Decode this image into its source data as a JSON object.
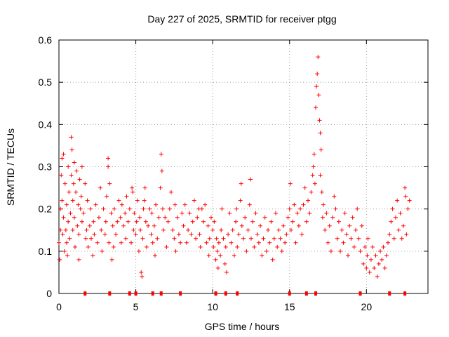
{
  "chart_data": {
    "type": "scatter",
    "title": "Day 227 of 2025, SRMTID for receiver ptgg",
    "xlabel": "GPS time / hours",
    "ylabel": "SRMTID / TECUs",
    "xlim": [
      0,
      24
    ],
    "ylim": [
      0,
      0.6
    ],
    "x_ticks": [
      0,
      5,
      10,
      15,
      20
    ],
    "x_tick_labels": [
      "0",
      "5",
      "10",
      "15",
      "20"
    ],
    "y_ticks": [
      0,
      0.1,
      0.2,
      0.3,
      0.4,
      0.5,
      0.6
    ],
    "y_tick_labels": [
      "0",
      "0.1",
      "0.2",
      "0.3",
      "0.4",
      "0.5",
      "0.6"
    ],
    "grid": true,
    "marker": "+",
    "color": "#ff0000",
    "series": [
      {
        "name": "SRMTID",
        "points": [
          [
            0.0,
            0.12
          ],
          [
            0.05,
            0.08
          ],
          [
            0.1,
            0.15
          ],
          [
            0.1,
            0.2
          ],
          [
            0.15,
            0.28
          ],
          [
            0.2,
            0.32
          ],
          [
            0.2,
            0.22
          ],
          [
            0.25,
            0.14
          ],
          [
            0.3,
            0.33
          ],
          [
            0.3,
            0.18
          ],
          [
            0.35,
            0.1
          ],
          [
            0.4,
            0.26
          ],
          [
            0.45,
            0.15
          ],
          [
            0.5,
            0.21
          ],
          [
            0.5,
            0.12
          ],
          [
            0.55,
            0.09
          ],
          [
            0.6,
            0.3
          ],
          [
            0.6,
            0.17
          ],
          [
            0.65,
            0.24
          ],
          [
            0.7,
            0.13
          ],
          [
            0.75,
            0.19
          ],
          [
            0.8,
            0.37
          ],
          [
            0.8,
            0.28
          ],
          [
            0.85,
            0.34
          ],
          [
            0.9,
            0.22
          ],
          [
            0.9,
            0.15
          ],
          [
            0.95,
            0.26
          ],
          [
            1.0,
            0.31
          ],
          [
            1.0,
            0.18
          ],
          [
            1.05,
            0.11
          ],
          [
            1.1,
            0.24
          ],
          [
            1.15,
            0.29
          ],
          [
            1.2,
            0.16
          ],
          [
            1.25,
            0.21
          ],
          [
            1.3,
            0.08
          ],
          [
            1.3,
            0.14
          ],
          [
            1.35,
            0.27
          ],
          [
            1.4,
            0.2
          ],
          [
            1.45,
            0.23
          ],
          [
            1.5,
            0.3
          ],
          [
            1.5,
            0.17
          ],
          [
            1.6,
            0.19
          ],
          [
            1.7,
            0.26
          ],
          [
            1.75,
            0.13
          ],
          [
            1.8,
            0.15
          ],
          [
            1.85,
            0.22
          ],
          [
            1.9,
            0.11
          ],
          [
            2.0,
            0.16
          ],
          [
            2.05,
            0.2
          ],
          [
            2.1,
            0.13
          ],
          [
            2.2,
            0.09
          ],
          [
            2.25,
            0.17
          ],
          [
            2.3,
            0.14
          ],
          [
            2.4,
            0.21
          ],
          [
            2.5,
            0.12
          ],
          [
            2.6,
            0.18
          ],
          [
            2.7,
            0.25
          ],
          [
            2.75,
            0.15
          ],
          [
            2.8,
            0.1
          ],
          [
            2.9,
            0.2
          ],
          [
            3.0,
            0.14
          ],
          [
            3.05,
            0.17
          ],
          [
            3.1,
            0.23
          ],
          [
            3.2,
            0.3
          ],
          [
            3.2,
            0.32
          ],
          [
            3.25,
            0.12
          ],
          [
            3.3,
            0.26
          ],
          [
            3.4,
            0.19
          ],
          [
            3.45,
            0.08
          ],
          [
            3.5,
            0.16
          ],
          [
            3.55,
            0.11
          ],
          [
            3.6,
            0.2
          ],
          [
            3.7,
            0.14
          ],
          [
            3.8,
            0.17
          ],
          [
            3.9,
            0.22
          ],
          [
            4.0,
            0.18
          ],
          [
            4.05,
            0.12
          ],
          [
            4.1,
            0.21
          ],
          [
            4.2,
            0.16
          ],
          [
            4.3,
            0.19
          ],
          [
            4.35,
            0.13
          ],
          [
            4.4,
            0.23
          ],
          [
            4.5,
            0.17
          ],
          [
            4.6,
            0.2
          ],
          [
            4.7,
            0.12
          ],
          [
            4.75,
            0.25
          ],
          [
            4.8,
            0.24
          ],
          [
            4.85,
            0.15
          ],
          [
            4.9,
            0.19
          ],
          [
            5.0,
            0.14
          ],
          [
            5.05,
            0.17
          ],
          [
            5.1,
            0.22
          ],
          [
            5.2,
            0.1
          ],
          [
            5.25,
            0.18
          ],
          [
            5.3,
            0.15
          ],
          [
            5.35,
            0.05
          ],
          [
            5.4,
            0.04
          ],
          [
            5.45,
            0.13
          ],
          [
            5.5,
            0.2
          ],
          [
            5.55,
            0.22
          ],
          [
            5.6,
            0.25
          ],
          [
            5.65,
            0.17
          ],
          [
            5.7,
            0.11
          ],
          [
            5.8,
            0.16
          ],
          [
            5.9,
            0.2
          ],
          [
            6.0,
            0.14
          ],
          [
            6.05,
            0.19
          ],
          [
            6.1,
            0.12
          ],
          [
            6.2,
            0.16
          ],
          [
            6.25,
            0.09
          ],
          [
            6.3,
            0.21
          ],
          [
            6.4,
            0.13
          ],
          [
            6.5,
            0.18
          ],
          [
            6.6,
            0.25
          ],
          [
            6.65,
            0.33
          ],
          [
            6.7,
            0.29
          ],
          [
            6.75,
            0.2
          ],
          [
            6.8,
            0.15
          ],
          [
            6.9,
            0.18
          ],
          [
            7.0,
            0.11
          ],
          [
            7.1,
            0.17
          ],
          [
            7.2,
            0.2
          ],
          [
            7.3,
            0.24
          ],
          [
            7.4,
            0.15
          ],
          [
            7.5,
            0.13
          ],
          [
            7.55,
            0.21
          ],
          [
            7.6,
            0.1
          ],
          [
            7.7,
            0.18
          ],
          [
            7.8,
            0.14
          ],
          [
            7.9,
            0.12
          ],
          [
            8.0,
            0.19
          ],
          [
            8.1,
            0.16
          ],
          [
            8.2,
            0.21
          ],
          [
            8.3,
            0.12
          ],
          [
            8.4,
            0.15
          ],
          [
            8.5,
            0.19
          ],
          [
            8.6,
            0.14
          ],
          [
            8.7,
            0.17
          ],
          [
            8.8,
            0.22
          ],
          [
            8.9,
            0.13
          ],
          [
            9.0,
            0.18
          ],
          [
            9.1,
            0.2
          ],
          [
            9.15,
            0.14
          ],
          [
            9.2,
            0.11
          ],
          [
            9.3,
            0.2
          ],
          [
            9.4,
            0.17
          ],
          [
            9.5,
            0.21
          ],
          [
            9.6,
            0.12
          ],
          [
            9.7,
            0.16
          ],
          [
            9.75,
            0.09
          ],
          [
            9.8,
            0.13
          ],
          [
            9.9,
            0.18
          ],
          [
            10.0,
            0.15
          ],
          [
            10.05,
            0.11
          ],
          [
            10.1,
            0.17
          ],
          [
            10.2,
            0.08
          ],
          [
            10.25,
            0.13
          ],
          [
            10.3,
            0.1
          ],
          [
            10.35,
            0.06
          ],
          [
            10.4,
            0.12
          ],
          [
            10.5,
            0.09
          ],
          [
            10.55,
            0.15
          ],
          [
            10.6,
            0.2
          ],
          [
            10.7,
            0.13
          ],
          [
            10.8,
            0.07
          ],
          [
            10.85,
            0.11
          ],
          [
            10.9,
            0.05
          ],
          [
            11.0,
            0.14
          ],
          [
            11.1,
            0.19
          ],
          [
            11.2,
            0.12
          ],
          [
            11.3,
            0.15
          ],
          [
            11.4,
            0.09
          ],
          [
            11.5,
            0.17
          ],
          [
            11.55,
            0.2
          ],
          [
            11.6,
            0.11
          ],
          [
            11.7,
            0.14
          ],
          [
            11.8,
            0.22
          ],
          [
            11.85,
            0.26
          ],
          [
            11.9,
            0.16
          ],
          [
            12.0,
            0.13
          ],
          [
            12.1,
            0.18
          ],
          [
            12.2,
            0.1
          ],
          [
            12.3,
            0.15
          ],
          [
            12.4,
            0.21
          ],
          [
            12.45,
            0.27
          ],
          [
            12.5,
            0.13
          ],
          [
            12.6,
            0.17
          ],
          [
            12.7,
            0.11
          ],
          [
            12.8,
            0.19
          ],
          [
            12.9,
            0.14
          ],
          [
            13.0,
            0.12
          ],
          [
            13.1,
            0.16
          ],
          [
            13.2,
            0.09
          ],
          [
            13.3,
            0.13
          ],
          [
            13.4,
            0.18
          ],
          [
            13.5,
            0.1
          ],
          [
            13.6,
            0.15
          ],
          [
            13.7,
            0.12
          ],
          [
            13.8,
            0.17
          ],
          [
            13.9,
            0.08
          ],
          [
            14.0,
            0.13
          ],
          [
            14.1,
            0.19
          ],
          [
            14.2,
            0.11
          ],
          [
            14.3,
            0.15
          ],
          [
            14.4,
            0.13
          ],
          [
            14.5,
            0.1
          ],
          [
            14.6,
            0.16
          ],
          [
            14.7,
            0.12
          ],
          [
            14.8,
            0.14
          ],
          [
            14.9,
            0.18
          ],
          [
            15.0,
            0.2
          ],
          [
            15.05,
            0.26
          ],
          [
            15.1,
            0.15
          ],
          [
            15.2,
            0.17
          ],
          [
            15.3,
            0.21
          ],
          [
            15.4,
            0.12
          ],
          [
            15.5,
            0.19
          ],
          [
            15.6,
            0.16
          ],
          [
            15.7,
            0.2
          ],
          [
            15.8,
            0.14
          ],
          [
            15.9,
            0.21
          ],
          [
            16.0,
            0.25
          ],
          [
            16.1,
            0.17
          ],
          [
            16.2,
            0.22
          ],
          [
            16.3,
            0.19
          ],
          [
            16.4,
            0.24
          ],
          [
            16.5,
            0.28
          ],
          [
            16.55,
            0.3
          ],
          [
            16.6,
            0.33
          ],
          [
            16.65,
            0.26
          ],
          [
            16.7,
            0.44
          ],
          [
            16.75,
            0.49
          ],
          [
            16.8,
            0.52
          ],
          [
            16.85,
            0.56
          ],
          [
            16.9,
            0.47
          ],
          [
            16.95,
            0.41
          ],
          [
            17.0,
            0.38
          ],
          [
            17.0,
            0.28
          ],
          [
            17.05,
            0.34
          ],
          [
            17.1,
            0.24
          ],
          [
            17.15,
            0.18
          ],
          [
            17.2,
            0.21
          ],
          [
            17.3,
            0.15
          ],
          [
            17.4,
            0.19
          ],
          [
            17.5,
            0.12
          ],
          [
            17.6,
            0.16
          ],
          [
            17.7,
            0.1
          ],
          [
            17.8,
            0.18
          ],
          [
            17.9,
            0.23
          ],
          [
            18.0,
            0.2
          ],
          [
            18.1,
            0.13
          ],
          [
            18.2,
            0.17
          ],
          [
            18.3,
            0.1
          ],
          [
            18.4,
            0.15
          ],
          [
            18.5,
            0.12
          ],
          [
            18.6,
            0.19
          ],
          [
            18.7,
            0.14
          ],
          [
            18.8,
            0.09
          ],
          [
            18.9,
            0.16
          ],
          [
            19.0,
            0.13
          ],
          [
            19.1,
            0.18
          ],
          [
            19.2,
            0.11
          ],
          [
            19.3,
            0.15
          ],
          [
            19.4,
            0.2
          ],
          [
            19.5,
            0.13
          ],
          [
            19.6,
            0.1
          ],
          [
            19.7,
            0.16
          ],
          [
            19.8,
            0.07
          ],
          [
            19.9,
            0.11
          ],
          [
            20.0,
            0.06
          ],
          [
            20.05,
            0.09
          ],
          [
            20.1,
            0.13
          ],
          [
            20.2,
            0.05
          ],
          [
            20.3,
            0.08
          ],
          [
            20.4,
            0.11
          ],
          [
            20.5,
            0.06
          ],
          [
            20.6,
            0.09
          ],
          [
            20.7,
            0.04
          ],
          [
            20.8,
            0.07
          ],
          [
            20.9,
            0.1
          ],
          [
            21.0,
            0.08
          ],
          [
            21.1,
            0.11
          ],
          [
            21.2,
            0.06
          ],
          [
            21.3,
            0.09
          ],
          [
            21.4,
            0.12
          ],
          [
            21.5,
            0.14
          ],
          [
            21.6,
            0.17
          ],
          [
            21.7,
            0.2
          ],
          [
            21.8,
            0.13
          ],
          [
            21.9,
            0.18
          ],
          [
            22.0,
            0.22
          ],
          [
            22.1,
            0.15
          ],
          [
            22.2,
            0.19
          ],
          [
            22.3,
            0.13
          ],
          [
            22.4,
            0.16
          ],
          [
            22.5,
            0.25
          ],
          [
            22.55,
            0.23
          ],
          [
            22.6,
            0.14
          ],
          [
            22.7,
            0.2
          ],
          [
            22.8,
            0.22
          ]
        ]
      }
    ],
    "baseline_markers_x": [
      1.7,
      3.3,
      4.6,
      5.0,
      6.1,
      6.65,
      7.9,
      10.2,
      10.85,
      11.6,
      15.0,
      16.1,
      16.7,
      19.6,
      21.5,
      22.5
    ]
  }
}
